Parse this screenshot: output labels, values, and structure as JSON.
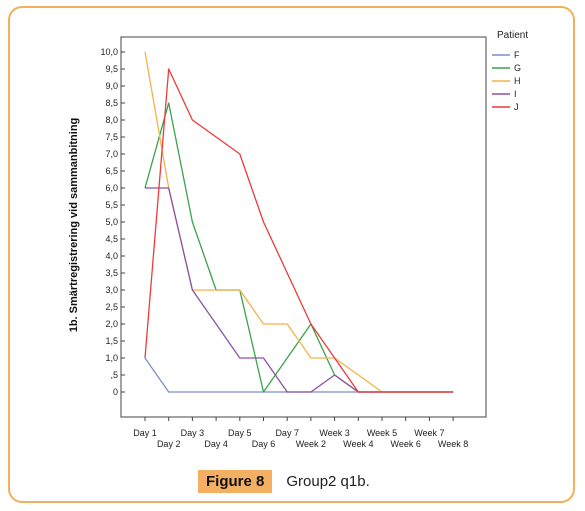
{
  "caption": {
    "label": "Figure 8",
    "text": "Group2  q1b."
  },
  "chart_data": {
    "type": "line",
    "ylabel": "1b. Smärtregistrering vid sammanbitning",
    "y_ticks": [
      "10,0",
      "9,5",
      "9,0",
      "8,5",
      "8,0",
      "7,5",
      "7,0",
      "6,5",
      "6,0",
      "5,5",
      "5,0",
      "4,5",
      "4,0",
      "3,5",
      "3,0",
      "2,5",
      "2,0",
      "1,5",
      "1,0",
      ",5",
      "0"
    ],
    "ylim": [
      0,
      10
    ],
    "categories": [
      "Day 1",
      "Day 2",
      "Day 3",
      "Day 4",
      "Day 5",
      "Day 6",
      "Day 7",
      "Week 2",
      "Week 3",
      "Week 4",
      "Week 5",
      "Week 6",
      "Week 7",
      "Week 8"
    ],
    "legend": {
      "title": "Patient",
      "placement": "right"
    },
    "series": [
      {
        "name": "F",
        "color": "#7a8fc4",
        "values": [
          1,
          0,
          0,
          0,
          0,
          0,
          0,
          0,
          0,
          0,
          0,
          0,
          0,
          0
        ]
      },
      {
        "name": "G",
        "color": "#3aa34a",
        "values": [
          6,
          8.5,
          5,
          3,
          3,
          0,
          1,
          2,
          0.5,
          0,
          0,
          0,
          0,
          0
        ]
      },
      {
        "name": "H",
        "color": "#f6b24a",
        "values": [
          10,
          6,
          3,
          3,
          3,
          2,
          2,
          1,
          1,
          0.5,
          0,
          0,
          0,
          0
        ]
      },
      {
        "name": "I",
        "color": "#8c52a6",
        "values": [
          6,
          6,
          3,
          2,
          1,
          1,
          0,
          0,
          0.5,
          0,
          0,
          0,
          0,
          0
        ]
      },
      {
        "name": "J",
        "color": "#ee3a3a",
        "values": [
          1,
          9.5,
          8,
          7.5,
          7,
          5,
          3.5,
          2,
          1,
          0,
          0,
          0,
          0,
          0
        ]
      }
    ]
  }
}
